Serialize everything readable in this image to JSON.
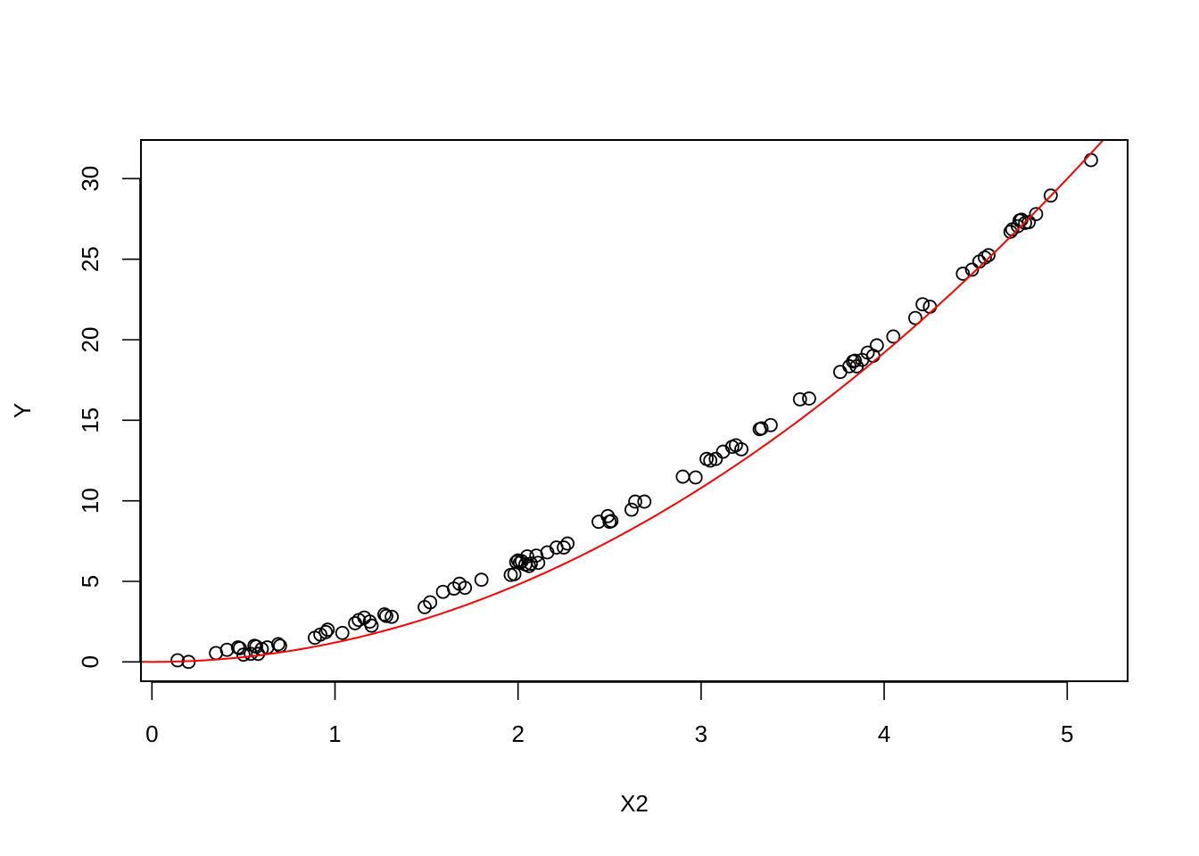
{
  "chart_data": {
    "type": "scatter",
    "title": "",
    "xlabel": "X2",
    "ylabel": "Y",
    "xlim": [
      -0.06,
      5.33
    ],
    "ylim": [
      -1.2,
      32.4
    ],
    "xticks": [
      0,
      1,
      2,
      3,
      4,
      5
    ],
    "yticks": [
      0,
      5,
      10,
      15,
      20,
      25,
      30
    ],
    "grid": false,
    "legend": "none",
    "colors": {
      "points": "#000000",
      "fit_line": "#ff0000",
      "frame": "#000000",
      "background": "#ffffff"
    },
    "series": [
      {
        "kind": "points",
        "marker": "open-circle",
        "x": [
          0.14,
          0.2,
          0.35,
          0.41,
          0.47,
          0.48,
          0.5,
          0.54,
          0.56,
          0.57,
          0.58,
          0.6,
          0.63,
          0.69,
          0.7,
          0.89,
          0.92,
          0.95,
          0.96,
          1.04,
          1.11,
          1.13,
          1.16,
          1.19,
          1.2,
          1.27,
          1.28,
          1.31,
          1.49,
          1.52,
          1.59,
          1.65,
          1.68,
          1.71,
          1.8,
          1.96,
          1.98,
          1.99,
          2.0,
          2.01,
          2.02,
          2.04,
          2.05,
          2.06,
          2.07,
          2.1,
          2.11,
          2.16,
          2.21,
          2.25,
          2.27,
          2.44,
          2.49,
          2.5,
          2.51,
          2.62,
          2.64,
          2.69,
          2.9,
          2.97,
          3.03,
          3.05,
          3.08,
          3.12,
          3.17,
          3.19,
          3.22,
          3.32,
          3.33,
          3.38,
          3.54,
          3.59,
          3.76,
          3.81,
          3.83,
          3.84,
          3.85,
          3.88,
          3.91,
          3.94,
          3.96,
          4.05,
          4.17,
          4.21,
          4.25,
          4.43,
          4.48,
          4.52,
          4.55,
          4.57,
          4.69,
          4.7,
          4.73,
          4.74,
          4.75,
          4.77,
          4.79,
          4.83,
          4.91,
          5.13
        ],
        "y": [
          0.1,
          0.0,
          0.55,
          0.75,
          0.9,
          0.85,
          0.45,
          0.5,
          1.0,
          0.95,
          0.5,
          0.8,
          0.9,
          1.1,
          1.0,
          1.5,
          1.7,
          1.85,
          2.0,
          1.8,
          2.4,
          2.6,
          2.75,
          2.5,
          2.25,
          2.95,
          2.85,
          2.8,
          3.4,
          3.7,
          4.35,
          4.55,
          4.85,
          4.6,
          5.1,
          5.4,
          5.45,
          6.2,
          6.3,
          6.15,
          6.25,
          6.05,
          6.55,
          5.95,
          6.1,
          6.6,
          6.15,
          6.8,
          7.1,
          7.1,
          7.35,
          8.7,
          9.05,
          8.7,
          8.75,
          9.45,
          9.95,
          9.95,
          11.5,
          11.45,
          12.6,
          12.5,
          12.6,
          13.05,
          13.35,
          13.45,
          13.2,
          14.45,
          14.5,
          14.7,
          16.3,
          16.35,
          18.0,
          18.35,
          18.65,
          18.7,
          18.35,
          18.75,
          19.2,
          19.0,
          19.65,
          20.2,
          21.35,
          22.2,
          22.05,
          24.1,
          24.35,
          24.85,
          25.1,
          25.25,
          26.7,
          26.85,
          27.05,
          27.4,
          27.45,
          27.25,
          27.3,
          27.8,
          28.95,
          31.15
        ]
      },
      {
        "kind": "fitted-curve",
        "formula": "y = 1.2*x^2",
        "coefficient": 1.2
      }
    ]
  }
}
